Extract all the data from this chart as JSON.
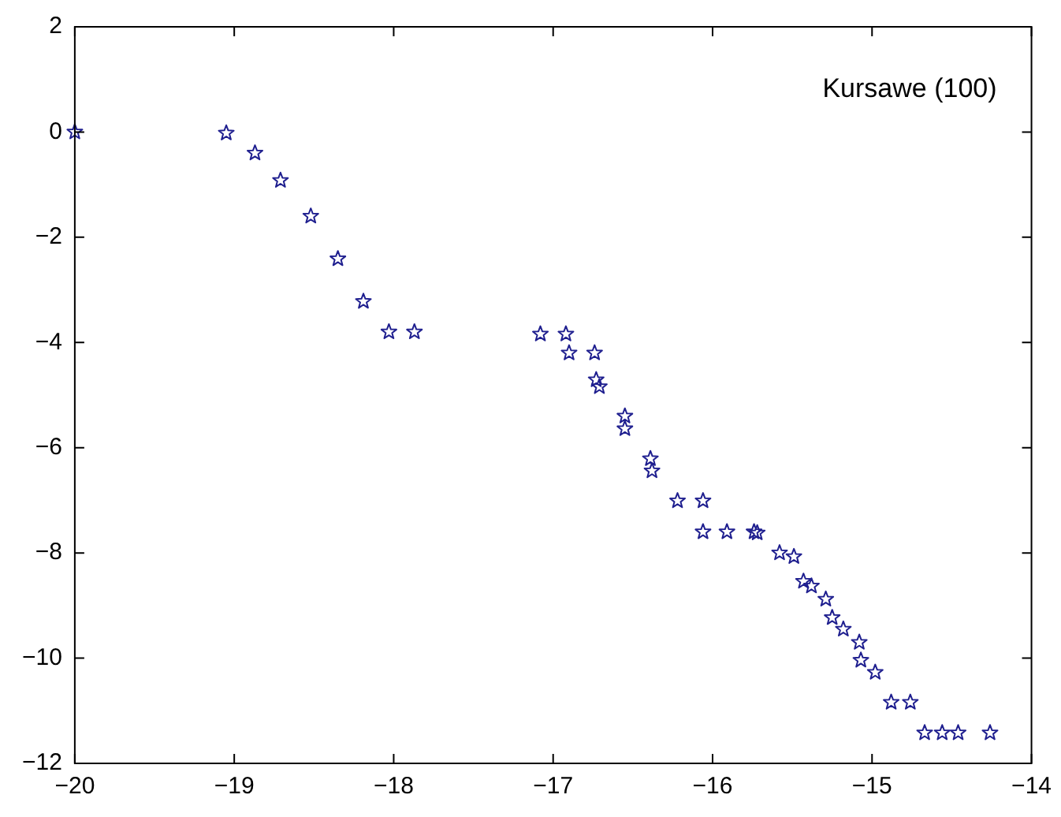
{
  "chart_data": {
    "type": "scatter",
    "marker": "star",
    "grid": false,
    "annotations": [
      "Kursawe (100)"
    ],
    "xlim": [
      -20,
      -14
    ],
    "xticks": [
      -20,
      -19,
      -18,
      -17,
      -16,
      -15,
      -14
    ],
    "ylim": [
      -12,
      2
    ],
    "yticks": [
      -12,
      -10,
      -8,
      -6,
      -4,
      -2,
      0,
      2
    ],
    "series": [
      {
        "color": "#1f1f8f",
        "x": [
          -20,
          -19.05,
          -18.87,
          -18.71,
          -18.52,
          -18.35,
          -18.19,
          -18.03,
          -17.87,
          -17.08,
          -16.92,
          -16.9,
          -16.74,
          -16.73,
          -16.71,
          -16.55,
          -16.55,
          -16.39,
          -16.38,
          -16.22,
          -16.06,
          -16.06,
          -15.91,
          -15.74,
          -15.72,
          -15.58,
          -15.49,
          -15.43,
          -15.38,
          -15.29,
          -15.25,
          -15.18,
          -15.08,
          -15.07,
          -14.98,
          -14.88,
          -14.76,
          -14.67,
          -14.56,
          -14.46,
          -14.26
        ],
        "values": [
          0,
          -0.02,
          -0.4,
          -0.92,
          -1.6,
          -2.41,
          -3.22,
          -3.8,
          -3.8,
          -3.84,
          -3.84,
          -4.2,
          -4.2,
          -4.71,
          -4.84,
          -5.4,
          -5.64,
          -6.21,
          -6.44,
          -7.01,
          -7.01,
          -7.6,
          -7.6,
          -7.6,
          -7.62,
          -8.0,
          -8.07,
          -8.54,
          -8.63,
          -8.88,
          -9.23,
          -9.45,
          -9.7,
          -10.04,
          -10.27,
          -10.84,
          -10.84,
          -11.42,
          -11.42,
          -11.42,
          -11.42
        ]
      }
    ]
  }
}
